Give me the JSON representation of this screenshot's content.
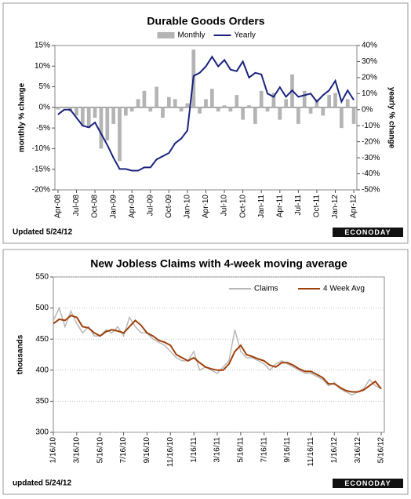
{
  "chart_data": [
    {
      "type": "combo",
      "title": "Durable Goods Orders",
      "ylabel": "monthly % change",
      "y2label": "yearly % change",
      "categories": [
        "Apr-08",
        null,
        null,
        "Jul-08",
        null,
        null,
        "Oct-08",
        null,
        null,
        "Jan-09",
        null,
        null,
        "Apr-09",
        null,
        null,
        "Jul-09",
        null,
        null,
        "Oct-09",
        null,
        null,
        "Jan-10",
        null,
        null,
        "Apr-10",
        null,
        null,
        "Jul-10",
        null,
        null,
        "Oct-10",
        null,
        null,
        "Jan-11",
        null,
        null,
        "Apr-11",
        null,
        null,
        "Jul-11",
        null,
        null,
        "Oct-11",
        null,
        null,
        "Jan-12",
        null,
        null,
        "Apr-12"
      ],
      "series": [
        {
          "name": "Monthly",
          "type": "bar",
          "axis": "y",
          "color": "#b4b4b4",
          "values": [
            -0.5,
            0,
            -1,
            -2,
            -4.5,
            -5,
            -2.5,
            -10,
            -8,
            -4,
            -13,
            -2,
            -1,
            2,
            4,
            -1,
            5,
            -2.5,
            2.5,
            2,
            -1,
            1,
            14,
            -1.5,
            2,
            4.5,
            -1,
            0.5,
            -1,
            3,
            -3,
            0.5,
            -4,
            4,
            -1,
            3.5,
            -3,
            2,
            8,
            -4,
            4,
            -1.5,
            2,
            -2,
            3,
            3.5,
            -5,
            2,
            -4
          ]
        },
        {
          "name": "Yearly",
          "type": "line",
          "axis": "y2",
          "color": "#1a237e",
          "values": [
            -3,
            0,
            0,
            -5,
            -10,
            -11,
            -8,
            -15,
            -22,
            -30,
            -37,
            -37,
            -38,
            -38,
            -36,
            -36,
            -31,
            -29,
            -27,
            -21,
            -18,
            -13,
            21,
            23,
            27,
            33,
            27,
            31,
            25,
            24,
            30,
            20,
            23,
            22,
            10,
            8,
            14,
            8,
            12,
            8,
            9,
            10,
            5,
            9,
            12,
            18,
            5,
            12,
            6
          ]
        }
      ],
      "ylim": [
        -20,
        15
      ],
      "yticks": [
        {
          "value": -20,
          "label": "-20%"
        },
        {
          "value": -15,
          "label": "-15%"
        },
        {
          "value": -10,
          "label": "-10%"
        },
        {
          "value": -5,
          "label": "-5%"
        },
        {
          "value": 0,
          "label": "0%"
        },
        {
          "value": 5,
          "label": "5%"
        },
        {
          "value": 10,
          "label": "10%"
        },
        {
          "value": 15,
          "label": "15%"
        }
      ],
      "y2lim": [
        -50,
        40
      ],
      "y2ticks": [
        {
          "value": -50,
          "label": "-50%"
        },
        {
          "value": -40,
          "label": "-40%"
        },
        {
          "value": -30,
          "label": "-30%"
        },
        {
          "value": -20,
          "label": "-20%"
        },
        {
          "value": -10,
          "label": "-10%"
        },
        {
          "value": 0,
          "label": "0%"
        },
        {
          "value": 10,
          "label": "10%"
        },
        {
          "value": 20,
          "label": "20%"
        },
        {
          "value": 30,
          "label": "30%"
        },
        {
          "value": 40,
          "label": "40%"
        }
      ],
      "grid": false,
      "legend": "top",
      "note": "Updated 5/24/12",
      "logo": "ECONODAY"
    },
    {
      "type": "line",
      "title": "New Jobless Claims with 4-week moving average",
      "ylabel": "thousands",
      "categories": [
        "1/16/10",
        null,
        null,
        null,
        "3/16/10",
        null,
        null,
        null,
        "5/16/10",
        null,
        null,
        null,
        "7/16/10",
        null,
        null,
        null,
        "9/16/10",
        null,
        null,
        null,
        "11/16/10",
        null,
        null,
        null,
        "1/16/11",
        null,
        null,
        null,
        "3/16/11",
        null,
        null,
        null,
        "5/16/11",
        null,
        null,
        null,
        "7/16/11",
        null,
        null,
        null,
        "9/16/11",
        null,
        null,
        null,
        "11/16/11",
        null,
        null,
        null,
        "1/16/12",
        null,
        null,
        null,
        "3/16/12",
        null,
        null,
        null,
        "5/16/12"
      ],
      "series": [
        {
          "name": "Claims",
          "color": "#b8b8b8",
          "values": [
            480,
            500,
            470,
            495,
            475,
            460,
            470,
            455,
            455,
            465,
            460,
            470,
            455,
            485,
            470,
            460,
            460,
            450,
            445,
            440,
            430,
            420,
            415,
            415,
            430,
            400,
            405,
            400,
            395,
            405,
            415,
            465,
            430,
            420,
            420,
            415,
            410,
            400,
            410,
            415,
            410,
            405,
            400,
            395,
            395,
            390,
            385,
            375,
            380,
            370,
            365,
            360,
            365,
            370,
            385,
            375,
            370
          ]
        },
        {
          "name": "4 Week Avg",
          "color": "#a0400a",
          "values": [
            475,
            482,
            480,
            488,
            485,
            470,
            468,
            460,
            455,
            462,
            465,
            463,
            460,
            470,
            480,
            472,
            460,
            455,
            448,
            445,
            440,
            425,
            420,
            415,
            420,
            412,
            405,
            402,
            400,
            400,
            410,
            430,
            440,
            425,
            422,
            418,
            415,
            408,
            405,
            412,
            412,
            408,
            402,
            398,
            398,
            393,
            388,
            378,
            378,
            372,
            367,
            365,
            365,
            368,
            375,
            382,
            370
          ]
        }
      ],
      "ylim": [
        300,
        550
      ],
      "yticks": [
        300,
        350,
        400,
        450,
        500,
        550
      ],
      "grid": true,
      "legend": "upper right",
      "note": "updated 5/24/12",
      "logo": "ECONODAY"
    }
  ]
}
